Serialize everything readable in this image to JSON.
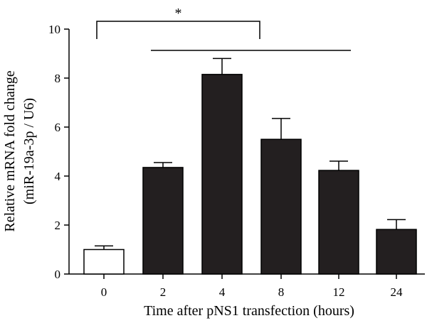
{
  "chart_data": {
    "type": "bar",
    "categories": [
      "0",
      "2",
      "4",
      "8",
      "12",
      "24"
    ],
    "values": [
      1.0,
      4.35,
      8.15,
      5.5,
      4.23,
      1.82
    ],
    "errors": [
      0.15,
      0.2,
      0.65,
      0.85,
      0.38,
      0.4
    ],
    "bar_colors": [
      "#ffffff",
      "#231f20",
      "#231f20",
      "#231f20",
      "#231f20",
      "#231f20"
    ],
    "title": "",
    "xlabel": "Time after pNS1 transfection (hours)",
    "ylabel_line1": "Relative mRNA fold change",
    "ylabel_line2": "(miR-19a-3p / U6)",
    "ylim": [
      0,
      10
    ],
    "yticks": [
      "0",
      "2",
      "4",
      "6",
      "8",
      "10"
    ],
    "significance": {
      "label": "*",
      "bracket_from": "0",
      "bracket_to": "8",
      "line_from": "2",
      "line_to": "12"
    },
    "grid": false,
    "legend": "none"
  }
}
